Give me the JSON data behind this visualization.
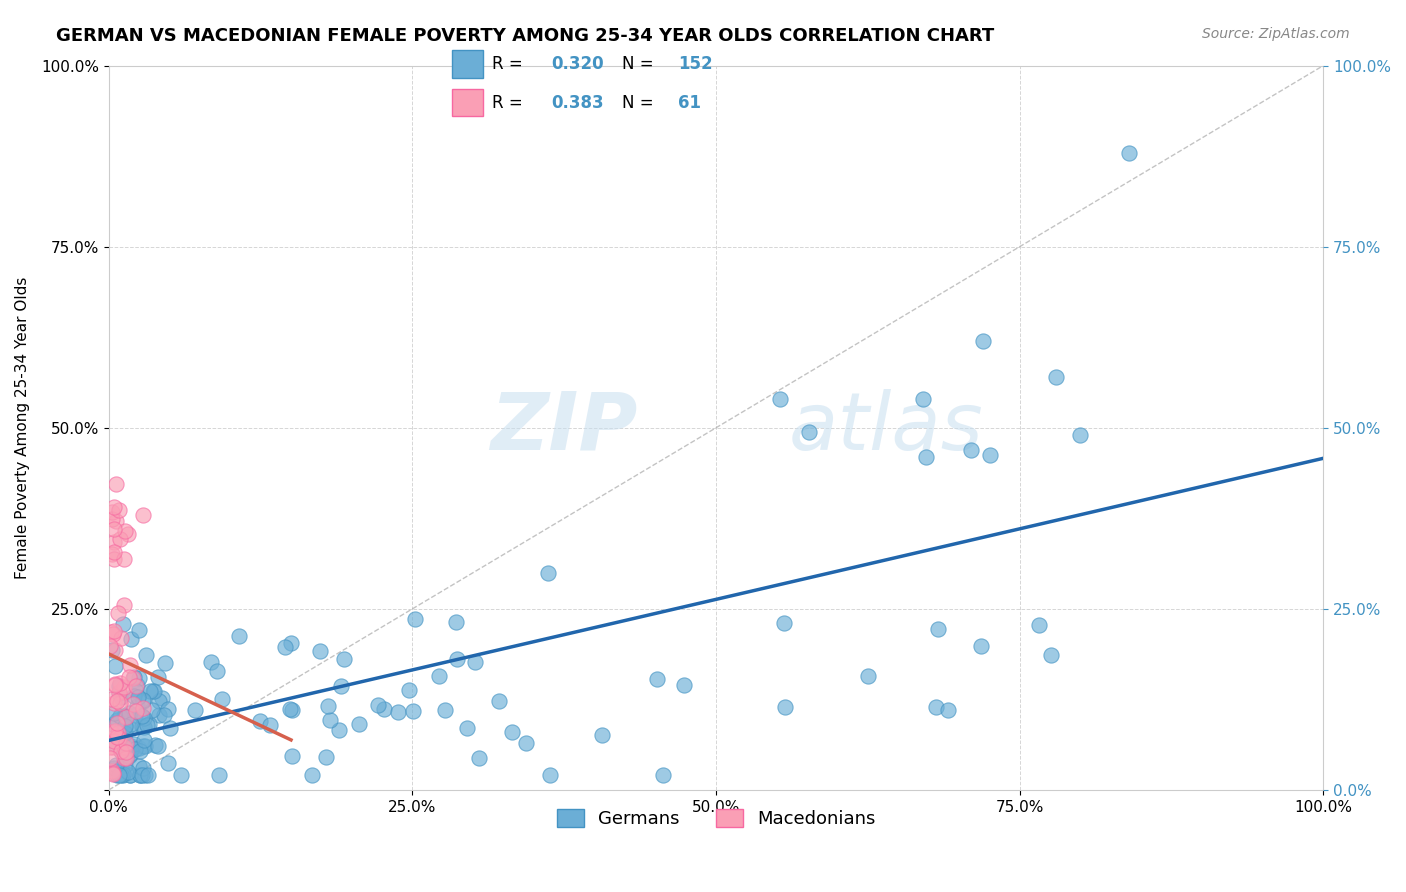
{
  "title": "GERMAN VS MACEDONIAN FEMALE POVERTY AMONG 25-34 YEAR OLDS CORRELATION CHART",
  "source": "Source: ZipAtlas.com",
  "ylabel": "Female Poverty Among 25-34 Year Olds",
  "watermark_zip": "ZIP",
  "watermark_atlas": "atlas",
  "blue_R": 0.32,
  "blue_N": 152,
  "pink_R": 0.383,
  "pink_N": 61,
  "blue_color": "#6baed6",
  "pink_color": "#fa9fb5",
  "blue_line_color": "#2166ac",
  "pink_line_color": "#d6604d",
  "blue_marker_edge": "#4393c3",
  "background_color": "#ffffff",
  "grid_color": "#cccccc",
  "xlim": [
    0,
    1
  ],
  "ylim": [
    0,
    1
  ],
  "xticks": [
    0,
    0.25,
    0.5,
    0.75,
    1.0
  ],
  "yticks": [
    0,
    0.25,
    0.5,
    0.75,
    1.0
  ],
  "xticklabels": [
    "0.0%",
    "25.0%",
    "50.0%",
    "75.0%",
    "100.0%"
  ],
  "yticklabels": [
    "",
    "25.0%",
    "50.0%",
    "75.0%",
    "100.0%"
  ],
  "right_yticklabels": [
    "0.0%",
    "25.0%",
    "50.0%",
    "75.0%",
    "100.0%"
  ],
  "diagonal_color": "#aaaaaa",
  "title_fontsize": 13,
  "label_fontsize": 11,
  "tick_fontsize": 11,
  "legend_fontsize": 13
}
